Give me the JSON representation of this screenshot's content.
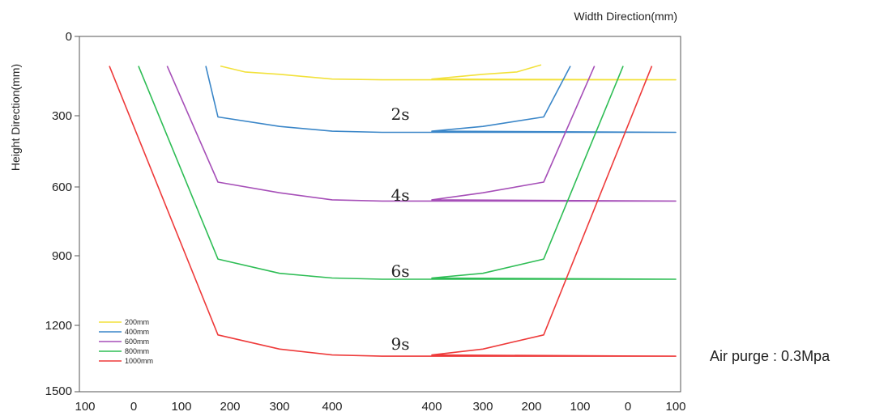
{
  "chart_data": {
    "type": "line",
    "xlabel": "Width Direction(mm)",
    "ylabel": "Height Direction(mm)",
    "ylim": [
      0,
      1500
    ],
    "y_reversed": true,
    "y_ticks": [
      0,
      300,
      600,
      900,
      1200,
      1500
    ],
    "x_tick_labels": [
      "100",
      "0",
      "100",
      "200",
      "300",
      "400",
      "400",
      "300",
      "200",
      "100",
      "0",
      "100"
    ],
    "grid": false,
    "legend_position": "bottom-left",
    "colors": {
      "200mm": "#f2e13a",
      "400mm": "#3a86c8",
      "600mm": "#a64fb8",
      "800mm": "#2ebd55",
      "1000mm": "#ee3a3a"
    },
    "series": [
      {
        "name": "200mm",
        "x": [
          180,
          230,
          300,
          400,
          450,
          500,
          400,
          300,
          230,
          180
        ],
        "y": [
          125,
          150,
          160,
          180,
          183,
          183,
          180,
          160,
          150,
          120
        ]
      },
      {
        "name": "400mm",
        "x": [
          150,
          175,
          300,
          400,
          450,
          500,
          400,
          300,
          175,
          140
        ],
        "y": [
          125,
          340,
          380,
          400,
          405,
          405,
          400,
          380,
          340,
          125
        ]
      },
      {
        "name": "600mm",
        "x": [
          70,
          175,
          300,
          400,
          450,
          500,
          400,
          300,
          175,
          70
        ],
        "y": [
          125,
          615,
          660,
          690,
          695,
          695,
          690,
          660,
          615,
          125
        ]
      },
      {
        "name": "800mm",
        "x": [
          10,
          175,
          300,
          400,
          450,
          500,
          400,
          300,
          175,
          10
        ],
        "y": [
          125,
          940,
          1000,
          1020,
          1025,
          1025,
          1020,
          1000,
          940,
          125
        ]
      },
      {
        "name": "1000mm",
        "x": [
          55,
          175,
          300,
          400,
          450,
          500,
          400,
          300,
          175,
          55
        ],
        "y": [
          125,
          1260,
          1320,
          1345,
          1350,
          1350,
          1345,
          1320,
          1260,
          125
        ]
      }
    ],
    "annotations": [
      {
        "text": "2s"
      },
      {
        "text": "4s"
      },
      {
        "text": "6s"
      },
      {
        "text": "9s"
      }
    ]
  },
  "note": "Air purge : 0.3Mpa"
}
